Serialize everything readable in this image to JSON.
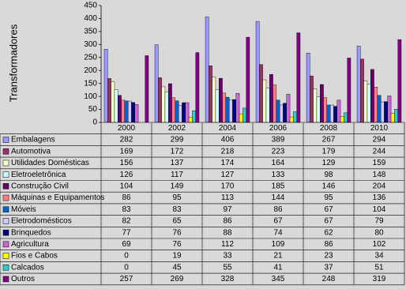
{
  "chart_data": {
    "type": "bar",
    "y_label": "Transformadores",
    "categories": [
      "2000",
      "2002",
      "2004",
      "2006",
      "2008",
      "2010"
    ],
    "ylim": [
      0,
      450
    ],
    "yticks": [
      0,
      50,
      100,
      150,
      200,
      250,
      300,
      350,
      400,
      450
    ],
    "series": [
      {
        "name": "Embalagens",
        "color": "#9999ff",
        "values": [
          282,
          299,
          406,
          389,
          267,
          294
        ]
      },
      {
        "name": "Automotiva",
        "color": "#993366",
        "values": [
          169,
          172,
          218,
          223,
          179,
          244
        ]
      },
      {
        "name": "Utilidades Domésticas",
        "color": "#ffffcc",
        "values": [
          156,
          137,
          174,
          164,
          129,
          159
        ]
      },
      {
        "name": "Eletroeletrônica",
        "color": "#ccffff",
        "values": [
          126,
          117,
          127,
          133,
          98,
          148
        ]
      },
      {
        "name": "Construção Civil",
        "color": "#660066",
        "values": [
          104,
          149,
          170,
          185,
          146,
          204
        ]
      },
      {
        "name": "Máquinas e Equipamentos",
        "color": "#ff8080",
        "values": [
          86,
          95,
          113,
          144,
          95,
          136
        ]
      },
      {
        "name": "Móveis",
        "color": "#0066cc",
        "values": [
          83,
          83,
          97,
          86,
          67,
          104
        ]
      },
      {
        "name": "Eletrodomésticos",
        "color": "#ccccff",
        "values": [
          82,
          65,
          86,
          67,
          67,
          79
        ]
      },
      {
        "name": "Brinquedos",
        "color": "#000080",
        "values": [
          77,
          76,
          88,
          74,
          62,
          80
        ]
      },
      {
        "name": "Agricultura",
        "color": "#cc66cc",
        "values": [
          69,
          76,
          112,
          109,
          86,
          102
        ]
      },
      {
        "name": "Fios e Cabos",
        "color": "#ffff00",
        "values": [
          0,
          19,
          33,
          21,
          23,
          34
        ]
      },
      {
        "name": "Calcados",
        "color": "#33cccc",
        "values": [
          0,
          45,
          55,
          41,
          37,
          51
        ]
      },
      {
        "name": "Outros",
        "color": "#800080",
        "values": [
          257,
          269,
          328,
          345,
          248,
          319
        ]
      }
    ]
  }
}
